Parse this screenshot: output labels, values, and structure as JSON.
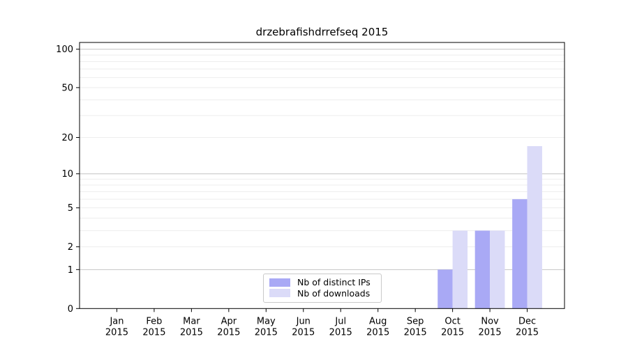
{
  "title": "drzebrafishdrrefseq 2015",
  "chart_data": {
    "type": "bar",
    "categories": [
      "Jan",
      "Feb",
      "Mar",
      "Apr",
      "May",
      "Jun",
      "Jul",
      "Aug",
      "Sep",
      "Oct",
      "Nov",
      "Dec"
    ],
    "year_label": "2015",
    "series": [
      {
        "name": "Nb of distinct IPs",
        "color": "#a9a9f5",
        "values": [
          0,
          0,
          0,
          0,
          0,
          0,
          0,
          0,
          0,
          1,
          3,
          6
        ]
      },
      {
        "name": "Nb of downloads",
        "color": "#dbdbf8",
        "values": [
          0,
          0,
          0,
          0,
          0,
          0,
          0,
          0,
          0,
          3,
          3,
          17
        ]
      }
    ],
    "title": "drzebrafishdrrefseq 2015",
    "xlabel": "",
    "ylabel": "",
    "yticks": [
      0,
      1,
      2,
      5,
      10,
      20,
      50,
      100
    ],
    "y_scale": "log1p",
    "ylim": [
      0,
      113
    ],
    "grid": true,
    "legend_position": "lower center",
    "colors": {
      "major_grid": "#c4c4c4",
      "minor_grid": "#ededed",
      "axis": "#000000",
      "background": "#ffffff"
    }
  }
}
